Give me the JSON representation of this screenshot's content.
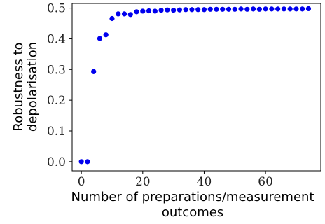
{
  "chart_data": {
    "type": "scatter",
    "xlabel": [
      "Number of preparations/measurement",
      "outcomes"
    ],
    "ylabel": [
      "Robustness to",
      "depolarisation"
    ],
    "xlim": [
      -3,
      78
    ],
    "ylim": [
      -0.03,
      0.515
    ],
    "x_ticks": [
      0,
      20,
      40,
      60
    ],
    "x_tick_labels": [
      "0",
      "20",
      "40",
      "60"
    ],
    "y_ticks": [
      0.0,
      0.1,
      0.2,
      0.3,
      0.4,
      0.5
    ],
    "y_tick_labels": [
      "0.0",
      "0.1",
      "0.2",
      "0.3",
      "0.4",
      "0.5"
    ],
    "grid": false,
    "marker_color": "#0000ee",
    "series": [
      {
        "points": [
          [
            0,
            0.0
          ],
          [
            2,
            0.0
          ],
          [
            4,
            0.293
          ],
          [
            6,
            0.401
          ],
          [
            8,
            0.413
          ],
          [
            10,
            0.466
          ],
          [
            12,
            0.481
          ],
          [
            14,
            0.481
          ],
          [
            16,
            0.479
          ],
          [
            18,
            0.488
          ],
          [
            20,
            0.49
          ],
          [
            22,
            0.491
          ],
          [
            24,
            0.49
          ],
          [
            26,
            0.493
          ],
          [
            28,
            0.494
          ],
          [
            30,
            0.493
          ],
          [
            32,
            0.494
          ],
          [
            34,
            0.495
          ],
          [
            36,
            0.495
          ],
          [
            38,
            0.495
          ],
          [
            40,
            0.495
          ],
          [
            42,
            0.496
          ],
          [
            44,
            0.496
          ],
          [
            46,
            0.496
          ],
          [
            48,
            0.496
          ],
          [
            50,
            0.496
          ],
          [
            52,
            0.497
          ],
          [
            54,
            0.496
          ],
          [
            56,
            0.497
          ],
          [
            58,
            0.496
          ],
          [
            60,
            0.497
          ],
          [
            62,
            0.497
          ],
          [
            64,
            0.497
          ],
          [
            66,
            0.497
          ],
          [
            68,
            0.497
          ],
          [
            70,
            0.497
          ],
          [
            72,
            0.497
          ],
          [
            74,
            0.498
          ]
        ]
      }
    ]
  }
}
